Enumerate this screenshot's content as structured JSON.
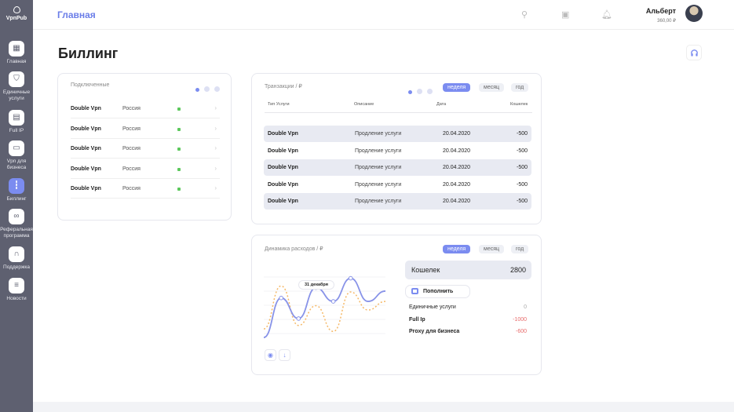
{
  "sidebar": {
    "logo": "VpnPub",
    "items": [
      {
        "label": "Главная",
        "icon": "grid-icon"
      },
      {
        "label": "Единичные услуги",
        "icon": "shield-icon"
      },
      {
        "label": "Full IP",
        "icon": "server-icon"
      },
      {
        "label": "Vpn для бизнеса",
        "icon": "briefcase-icon"
      },
      {
        "label": "Биллинг",
        "icon": "bar-chart-icon",
        "active": true
      },
      {
        "label": "Реферальная программа",
        "icon": "share-icon"
      },
      {
        "label": "Поддержка",
        "icon": "headset-icon"
      },
      {
        "label": "Новости",
        "icon": "news-icon"
      }
    ]
  },
  "header": {
    "title": "Главная",
    "user": {
      "name": "Альберт",
      "balance": "360,00 ₽"
    }
  },
  "page": {
    "title": "Биллинг"
  },
  "connected": {
    "title": "Подключенные",
    "rows": [
      {
        "name": "Double Vpn",
        "country": "Россия"
      },
      {
        "name": "Double Vpn",
        "country": "Россия"
      },
      {
        "name": "Double Vpn",
        "country": "Россия"
      },
      {
        "name": "Double Vpn",
        "country": "Россия"
      },
      {
        "name": "Double Vpn",
        "country": "Россия"
      }
    ]
  },
  "transactions": {
    "title": "Транзакции / ₽",
    "periods": [
      "неделя",
      "месяц",
      "год"
    ],
    "columns": [
      "Тип Услуги",
      "Описание",
      "Дата",
      "Кошелек"
    ],
    "rows": [
      [
        "Double Vpn",
        "Продление услуги",
        "20.04.2020",
        "-500"
      ],
      [
        "Double Vpn",
        "Продление услуги",
        "20.04.2020",
        "-500"
      ],
      [
        "Double Vpn",
        "Продление услуги",
        "20.04.2020",
        "-500"
      ],
      [
        "Double Vpn",
        "Продление услуги",
        "20.04.2020",
        "-500"
      ],
      [
        "Double Vpn",
        "Продление услуги",
        "20.04.2020",
        "-500"
      ]
    ]
  },
  "expenses": {
    "title": "Динамика расходов / ₽",
    "periods": [
      "неделя",
      "месяц",
      "год"
    ],
    "tooltip": "31 декабря",
    "wallet": {
      "label": "Кошелек",
      "value": "2800"
    },
    "topup": "Пополнить",
    "items": [
      {
        "label": "Единичные услуги",
        "value": "0"
      },
      {
        "label": "Full Ip",
        "value": "-1000"
      },
      {
        "label": "Proxy для бизнеса",
        "value": "-600"
      }
    ]
  },
  "colors": {
    "accent": "#7b8cf0",
    "dashed": "#f5b866",
    "negative": "#e86b6b",
    "online": "#5cc85c"
  },
  "chart_data": {
    "type": "line",
    "grid": true,
    "series": [
      {
        "style": "solid",
        "values": [
          0,
          46,
          22,
          58,
          42,
          69,
          42,
          54
        ]
      },
      {
        "style": "dashed",
        "values": [
          10,
          60,
          14,
          37,
          7,
          53,
          32,
          42
        ]
      }
    ]
  }
}
